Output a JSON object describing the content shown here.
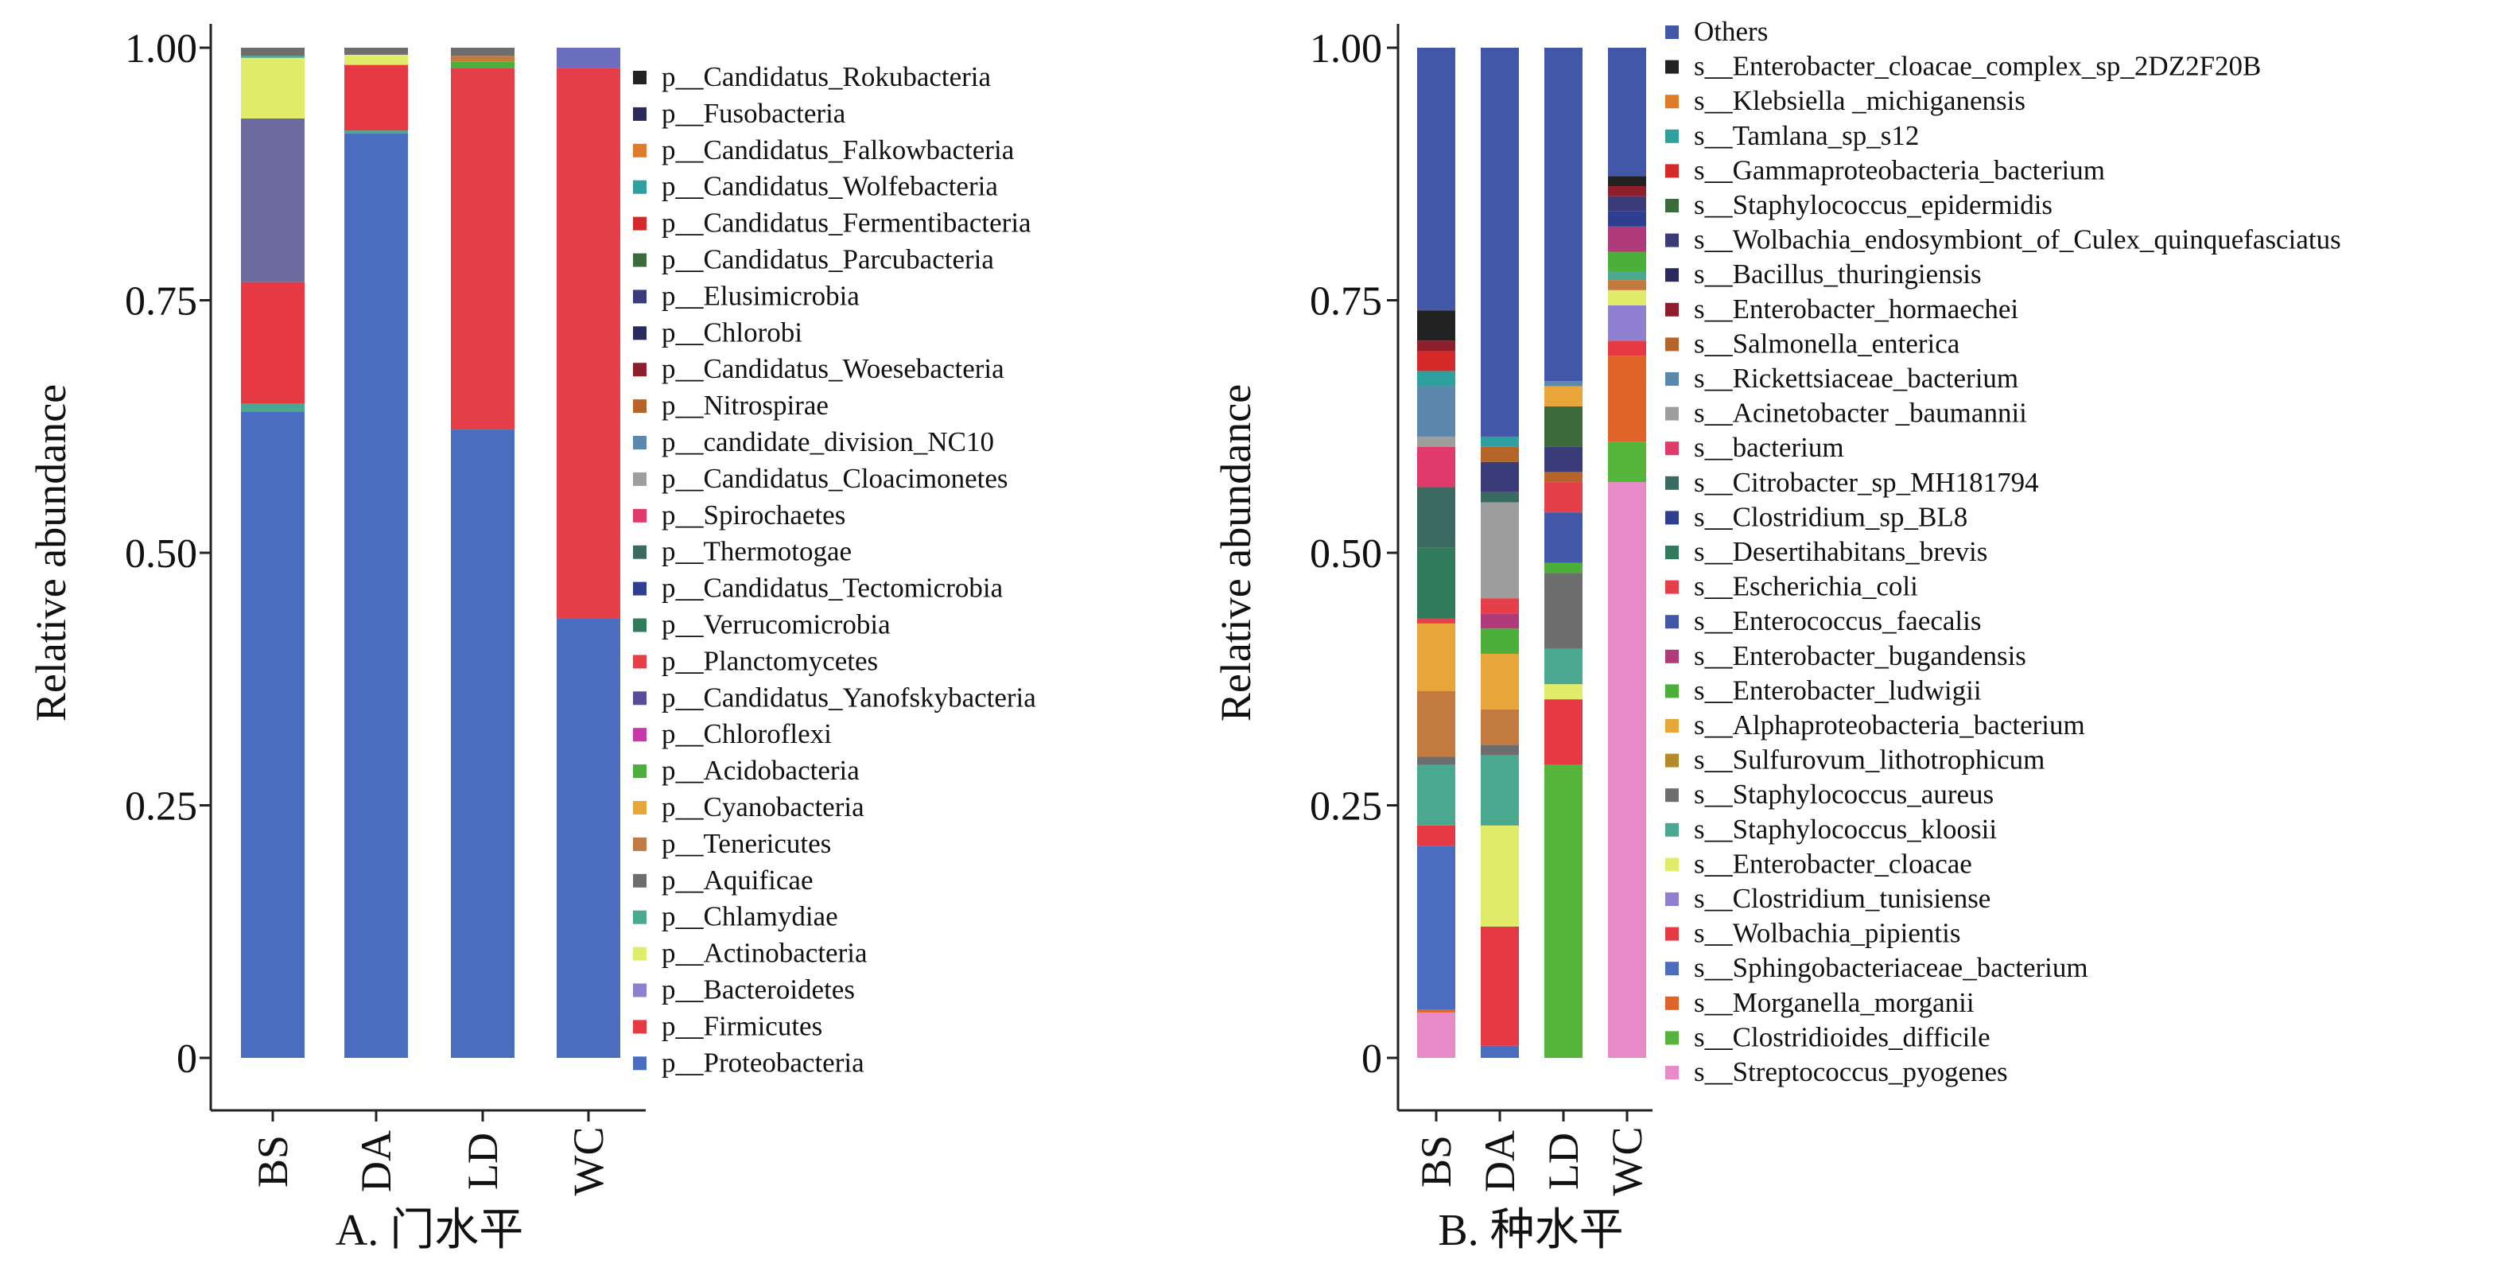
{
  "colors": {
    "c_blue": "#4a6dbf",
    "c_red": "#e53a43",
    "c_lilac": "#8f7fd1",
    "c_yellowgreen": "#e2ec6b",
    "c_seagreen": "#49a88f",
    "c_gray": "#6d6d6d",
    "c_brown": "#c27a3f",
    "c_orange": "#e8a53a",
    "c_green": "#4caf39",
    "c_magenta": "#c839a7",
    "c_purple": "#5a4c9a",
    "c_darkgreen": "#2f7b5c",
    "c_navy": "#2e3f91",
    "c_darkteal": "#3b6b60",
    "c_pink": "#e03a6b",
    "c_lightgray": "#9e9e9e",
    "c_steel": "#5d88ad",
    "c_rust": "#b5652a",
    "c_darkred": "#8e1e2c",
    "c_indigo": "#2b2a5c",
    "c_darkslate": "#3a3c7a",
    "c_green2": "#3b6b3b",
    "c_redbright": "#d62a2a",
    "c_teal": "#2fa0a0",
    "c_orange2": "#e07b2a",
    "c_black": "#222222",
    "c_royal": "#4357a8",
    "c_lightpink": "#e98ac8",
    "c_brightgreen": "#55b43a",
    "c_red2": "#e54545"
  },
  "chart_data": [
    {
      "type": "bar",
      "stacked": true,
      "panel_label": "A. 门水平",
      "ylabel": "Relative abundance",
      "ylim": [
        0,
        1
      ],
      "yticks": [
        "0",
        "0.25",
        "0.50",
        "0.75",
        "1.00"
      ],
      "categories": [
        "BS",
        "DA",
        "LD",
        "WC"
      ],
      "legend": [
        {
          "label": "p__Candidatus_Rokubacteria",
          "color": "#222222"
        },
        {
          "label": "p__Fusobacteria",
          "color": "#2b2a5c"
        },
        {
          "label": "p__Candidatus_Falkowbacteria",
          "color": "#e07b2a"
        },
        {
          "label": "p__Candidatus_Wolfebacteria",
          "color": "#2fa0a0"
        },
        {
          "label": "p__Candidatus_Fermentibacteria",
          "color": "#d62a2a"
        },
        {
          "label": "p__Candidatus_Parcubacteria",
          "color": "#3b6b3b"
        },
        {
          "label": "p__Elusimicrobia",
          "color": "#3a3c7a"
        },
        {
          "label": "p__Chlorobi",
          "color": "#2b2a5c"
        },
        {
          "label": "p__Candidatus_Woesebacteria",
          "color": "#8e1e2c"
        },
        {
          "label": "p__Nitrospirae",
          "color": "#b5652a"
        },
        {
          "label": "p__candidate_division_NC10",
          "color": "#5d88ad"
        },
        {
          "label": "p__Candidatus_Cloacimonetes",
          "color": "#9e9e9e"
        },
        {
          "label": "p__Spirochaetes",
          "color": "#e03a6b"
        },
        {
          "label": "p__Thermotogae",
          "color": "#3b6b60"
        },
        {
          "label": "p__Candidatus_Tectomicrobia",
          "color": "#2e3f91"
        },
        {
          "label": "p__Verrucomicrobia",
          "color": "#2f7b5c"
        },
        {
          "label": "p__Planctomycetes",
          "color": "#e5404a"
        },
        {
          "label": "p__Candidatus_Yanofskybacteria",
          "color": "#5a4c9a"
        },
        {
          "label": "p__Chloroflexi",
          "color": "#c839a7"
        },
        {
          "label": "p__Acidobacteria",
          "color": "#4caf39"
        },
        {
          "label": "p__Cyanobacteria",
          "color": "#e8a53a"
        },
        {
          "label": "p__Tenericutes",
          "color": "#c27a3f"
        },
        {
          "label": "p__Aquificae",
          "color": "#6d6d6d"
        },
        {
          "label": "p__Chlamydiae",
          "color": "#49a88f"
        },
        {
          "label": "p__Actinobacteria",
          "color": "#e2ec6b"
        },
        {
          "label": "p__Bacteroidetes",
          "color": "#8f7fd1"
        },
        {
          "label": "p__Firmicutes",
          "color": "#e53a43"
        },
        {
          "label": "p__Proteobacteria",
          "color": "#4a6dbf"
        }
      ],
      "series_by_category": {
        "BS": [
          {
            "name": "p__Proteobacteria",
            "value": 0.64,
            "color": "#4a6dbf"
          },
          {
            "name": "p__Chlamydiae",
            "value": 0.008,
            "color": "#49a88f"
          },
          {
            "name": "p__Firmicutes",
            "value": 0.12,
            "color": "#e53a43"
          },
          {
            "name": "p__Candidatus_Yanofskybacteria",
            "value": 0.162,
            "color": "#6c6a9e"
          },
          {
            "name": "p__Actinobacteria",
            "value": 0.06,
            "color": "#e2ec6b"
          },
          {
            "name": "p__Chlamydiae",
            "value": 0.002,
            "color": "#49a88f"
          },
          {
            "name": "p__Aquificae",
            "value": 0.008,
            "color": "#6d6d6d"
          }
        ],
        "DA": [
          {
            "name": "p__Proteobacteria",
            "value": 0.915,
            "color": "#4a6dbf"
          },
          {
            "name": "p__Chlamydiae",
            "value": 0.003,
            "color": "#49a88f"
          },
          {
            "name": "p__Firmicutes",
            "value": 0.065,
            "color": "#e53a43"
          },
          {
            "name": "p__Actinobacteria",
            "value": 0.01,
            "color": "#e2ec6b"
          },
          {
            "name": "p__Aquificae",
            "value": 0.007,
            "color": "#6d6d6d"
          }
        ],
        "LD": [
          {
            "name": "p__Proteobacteria",
            "value": 0.622,
            "color": "#4a6dbf"
          },
          {
            "name": "p__Planctomycetes",
            "value": 0.358,
            "color": "#e5404a"
          },
          {
            "name": "p__Acidobacteria",
            "value": 0.006,
            "color": "#4caf39"
          },
          {
            "name": "p__Tenericutes",
            "value": 0.006,
            "color": "#c27a3f"
          },
          {
            "name": "p__Aquificae",
            "value": 0.008,
            "color": "#6d6d6d"
          }
        ],
        "WC": [
          {
            "name": "p__Proteobacteria",
            "value": 0.435,
            "color": "#4a6dbf"
          },
          {
            "name": "p__Planctomycetes",
            "value": 0.545,
            "color": "#e5404a"
          },
          {
            "name": "p__Bacteroidetes",
            "value": 0.02,
            "color": "#6c6ec0"
          }
        ]
      }
    },
    {
      "type": "bar",
      "stacked": true,
      "panel_label": "B. 种水平",
      "ylabel": "Relative abundance",
      "ylim": [
        0,
        1
      ],
      "yticks": [
        "0",
        "0.25",
        "0.50",
        "0.75",
        "1.00"
      ],
      "categories": [
        "BS",
        "DA",
        "LD",
        "WC"
      ],
      "legend": [
        {
          "label": "Others",
          "color": "#4357a8"
        },
        {
          "label": "s__Enterobacter_cloacae_complex_sp_2DZ2F20B",
          "color": "#222222"
        },
        {
          "label": "s__Klebsiella _michiganensis",
          "color": "#e07b2a"
        },
        {
          "label": "s__Tamlana_sp_s12",
          "color": "#2fa0a0"
        },
        {
          "label": "s__Gammaproteobacteria_bacterium",
          "color": "#d62a2a"
        },
        {
          "label": "s__Staphylococcus_epidermidis",
          "color": "#3b6b3b"
        },
        {
          "label": "s__Wolbachia_endosymbiont_of_Culex_quinquefasciatus",
          "color": "#3a3c7a"
        },
        {
          "label": "s__Bacillus_thuringiensis",
          "color": "#2b2a5c"
        },
        {
          "label": "s__Enterobacter_hormaechei",
          "color": "#8e1e2c"
        },
        {
          "label": "s__Salmonella_enterica",
          "color": "#b5652a"
        },
        {
          "label": "s__Rickettsiaceae_bacterium",
          "color": "#5d88ad"
        },
        {
          "label": "s__Acinetobacter _baumannii",
          "color": "#9e9e9e"
        },
        {
          "label": "s__bacterium",
          "color": "#e03a6b"
        },
        {
          "label": "s__Citrobacter_sp_MH181794",
          "color": "#3b6b60"
        },
        {
          "label": "s__Clostridium_sp_BL8",
          "color": "#2e3f91"
        },
        {
          "label": "s__Desertihabitans_brevis",
          "color": "#2f7b5c"
        },
        {
          "label": "s__Escherichia_coli",
          "color": "#e5404a"
        },
        {
          "label": "s__Enterococcus_faecalis",
          "color": "#4357a8"
        },
        {
          "label": "s__Enterobacter_bugandensis",
          "color": "#b03a7a"
        },
        {
          "label": "s__Enterobacter_ludwigii",
          "color": "#4caf39"
        },
        {
          "label": "s__Alphaproteobacteria_bacterium",
          "color": "#e8a53a"
        },
        {
          "label": "s__Sulfurovum_lithotrophicum",
          "color": "#b58a2a"
        },
        {
          "label": "s__Staphylococcus_aureus",
          "color": "#6d6d6d"
        },
        {
          "label": "s__Staphylococcus_kloosii",
          "color": "#49a88f"
        },
        {
          "label": "s__Enterobacter_cloacae",
          "color": "#e2ec6b"
        },
        {
          "label": "s__Clostridium_tunisiense",
          "color": "#8f7fd1"
        },
        {
          "label": "s__Wolbachia_pipientis",
          "color": "#e53a43"
        },
        {
          "label": "s__Sphingobacteriaceae_bacterium",
          "color": "#4a6dbf"
        },
        {
          "label": "s__Morganella_morganii",
          "color": "#e0642a"
        },
        {
          "label": "s__Clostridioides_difficile",
          "color": "#55b43a"
        },
        {
          "label": "s__Streptococcus_pyogenes",
          "color": "#e98ac8"
        }
      ],
      "series_by_category": {
        "BS": [
          {
            "name": "s__Streptococcus_pyogenes",
            "value": 0.045,
            "color": "#e98ac8"
          },
          {
            "name": "s__Morganella_morganii",
            "value": 0.003,
            "color": "#e0642a"
          },
          {
            "name": "s__Sphingobacteriaceae_bacterium",
            "value": 0.162,
            "color": "#4a6dbf"
          },
          {
            "name": "s__Wolbachia_pipientis",
            "value": 0.02,
            "color": "#e53a43"
          },
          {
            "name": "s__Staphylococcus_kloosii",
            "value": 0.06,
            "color": "#49a88f"
          },
          {
            "name": "s__Staphylococcus_aureus",
            "value": 0.008,
            "color": "#6d6d6d"
          },
          {
            "name": "s__Sulfurovum_lithotrophicum",
            "value": 0.065,
            "color": "#c27a3f"
          },
          {
            "name": "s__Alphaproteobacteria_bacterium",
            "value": 0.067,
            "color": "#e8a53a"
          },
          {
            "name": "s__Escherichia_coli",
            "value": 0.005,
            "color": "#e5404a"
          },
          {
            "name": "s__Desertihabitans_brevis",
            "value": 0.07,
            "color": "#2f7b5c"
          },
          {
            "name": "s__Citrobacter_sp_MH181794",
            "value": 0.06,
            "color": "#3b6b60"
          },
          {
            "name": "s__bacterium",
            "value": 0.04,
            "color": "#e03a6b"
          },
          {
            "name": "s__Acinetobacter _baumannii",
            "value": 0.01,
            "color": "#9e9e9e"
          },
          {
            "name": "s__Rickettsiaceae_bacterium",
            "value": 0.05,
            "color": "#5d88ad"
          },
          {
            "name": "s__Tamlana_sp_s12",
            "value": 0.015,
            "color": "#2fa0a0"
          },
          {
            "name": "s__Gammaproteobacteria_bacterium",
            "value": 0.02,
            "color": "#d62a2a"
          },
          {
            "name": "s__Enterobacter_hormaechei",
            "value": 0.01,
            "color": "#8e1e2c"
          },
          {
            "name": "s__Enterobacter_cloacae_complex_sp_2DZ2F20B",
            "value": 0.03,
            "color": "#222222"
          },
          {
            "name": "Others",
            "value": 0.26,
            "color": "#4357a8"
          }
        ],
        "DA": [
          {
            "name": "s__Sphingobacteriaceae_bacterium",
            "value": 0.012,
            "color": "#4a6dbf"
          },
          {
            "name": "s__Wolbachia_pipientis",
            "value": 0.118,
            "color": "#e53a43"
          },
          {
            "name": "s__Enterobacter_cloacae",
            "value": 0.1,
            "color": "#e2ec6b"
          },
          {
            "name": "s__Staphylococcus_kloosii",
            "value": 0.07,
            "color": "#49a88f"
          },
          {
            "name": "s__Staphylococcus_aureus",
            "value": 0.01,
            "color": "#6d6d6d"
          },
          {
            "name": "s__Sulfurovum_lithotrophicum",
            "value": 0.035,
            "color": "#c27a3f"
          },
          {
            "name": "s__Alphaproteobacteria_bacterium",
            "value": 0.055,
            "color": "#e8a53a"
          },
          {
            "name": "s__Enterobacter_ludwigii",
            "value": 0.025,
            "color": "#4caf39"
          },
          {
            "name": "s__Enterobacter_bugandensis",
            "value": 0.015,
            "color": "#b03a7a"
          },
          {
            "name": "s__Escherichia_coli",
            "value": 0.015,
            "color": "#e5404a"
          },
          {
            "name": "s__Acinetobacter _baumannii",
            "value": 0.095,
            "color": "#9e9e9e"
          },
          {
            "name": "s__Citrobacter_sp_MH181794",
            "value": 0.01,
            "color": "#3b6b60"
          },
          {
            "name": "s__Bacillus_thuringiensis",
            "value": 0.03,
            "color": "#3a3c7a"
          },
          {
            "name": "s__Salmonella_enterica",
            "value": 0.015,
            "color": "#b5652a"
          },
          {
            "name": "s__Tamlana_sp_s12",
            "value": 0.01,
            "color": "#2fa0a0"
          },
          {
            "name": "Others",
            "value": 0.385,
            "color": "#4357a8"
          }
        ],
        "LD": [
          {
            "name": "s__Clostridioides_difficile",
            "value": 0.29,
            "color": "#55b43a"
          },
          {
            "name": "s__Wolbachia_pipientis",
            "value": 0.065,
            "color": "#e53a43"
          },
          {
            "name": "s__Enterobacter_cloacae",
            "value": 0.015,
            "color": "#e2ec6b"
          },
          {
            "name": "s__Staphylococcus_kloosii",
            "value": 0.035,
            "color": "#49a88f"
          },
          {
            "name": "s__Staphylococcus_aureus",
            "value": 0.075,
            "color": "#6d6d6d"
          },
          {
            "name": "s__Enterobacter_ludwigii",
            "value": 0.01,
            "color": "#4caf39"
          },
          {
            "name": "s__Enterococcus_faecalis",
            "value": 0.05,
            "color": "#4357a8"
          },
          {
            "name": "s__Escherichia_coli",
            "value": 0.03,
            "color": "#e5404a"
          },
          {
            "name": "s__Salmonella_enterica",
            "value": 0.01,
            "color": "#b5652a"
          },
          {
            "name": "s__Bacillus_thuringiensis",
            "value": 0.025,
            "color": "#3a3c7a"
          },
          {
            "name": "s__Staphylococcus_epidermidis",
            "value": 0.04,
            "color": "#3b6b3b"
          },
          {
            "name": "s__Klebsiella _michiganensis",
            "value": 0.02,
            "color": "#e8a53a"
          },
          {
            "name": "s__Rickettsiaceae_bacterium",
            "value": 0.005,
            "color": "#5d88ad"
          },
          {
            "name": "Others",
            "value": 0.33,
            "color": "#4357a8"
          }
        ],
        "WC": [
          {
            "name": "s__Streptococcus_pyogenes",
            "value": 0.57,
            "color": "#e98ac8"
          },
          {
            "name": "s__Clostridioides_difficile",
            "value": 0.04,
            "color": "#55b43a"
          },
          {
            "name": "s__Morganella_morganii",
            "value": 0.085,
            "color": "#e0642a"
          },
          {
            "name": "s__Wolbachia_pipientis",
            "value": 0.015,
            "color": "#e53a43"
          },
          {
            "name": "s__Clostridium_tunisiense",
            "value": 0.035,
            "color": "#8f7fd1"
          },
          {
            "name": "s__Enterobacter_cloacae",
            "value": 0.015,
            "color": "#e2ec6b"
          },
          {
            "name": "s__Sulfurovum_lithotrophicum",
            "value": 0.01,
            "color": "#c27a3f"
          },
          {
            "name": "s__Staphylococcus_kloosii",
            "value": 0.008,
            "color": "#49a88f"
          },
          {
            "name": "s__Enterobacter_ludwigii",
            "value": 0.02,
            "color": "#4caf39"
          },
          {
            "name": "s__Enterobacter_bugandensis",
            "value": 0.025,
            "color": "#b03a7a"
          },
          {
            "name": "s__Clostridium_sp_BL8",
            "value": 0.015,
            "color": "#2e3f91"
          },
          {
            "name": "s__Wolbachia_endosymbiont_of_Culex_quinquefasciatus",
            "value": 0.015,
            "color": "#3a3c7a"
          },
          {
            "name": "s__Enterobacter_hormaechei",
            "value": 0.01,
            "color": "#8e1e2c"
          },
          {
            "name": "s__Enterobacter_cloacae_complex_sp_2DZ2F20B",
            "value": 0.01,
            "color": "#222222"
          },
          {
            "name": "Others",
            "value": 0.127,
            "color": "#4357a8"
          }
        ]
      }
    }
  ]
}
